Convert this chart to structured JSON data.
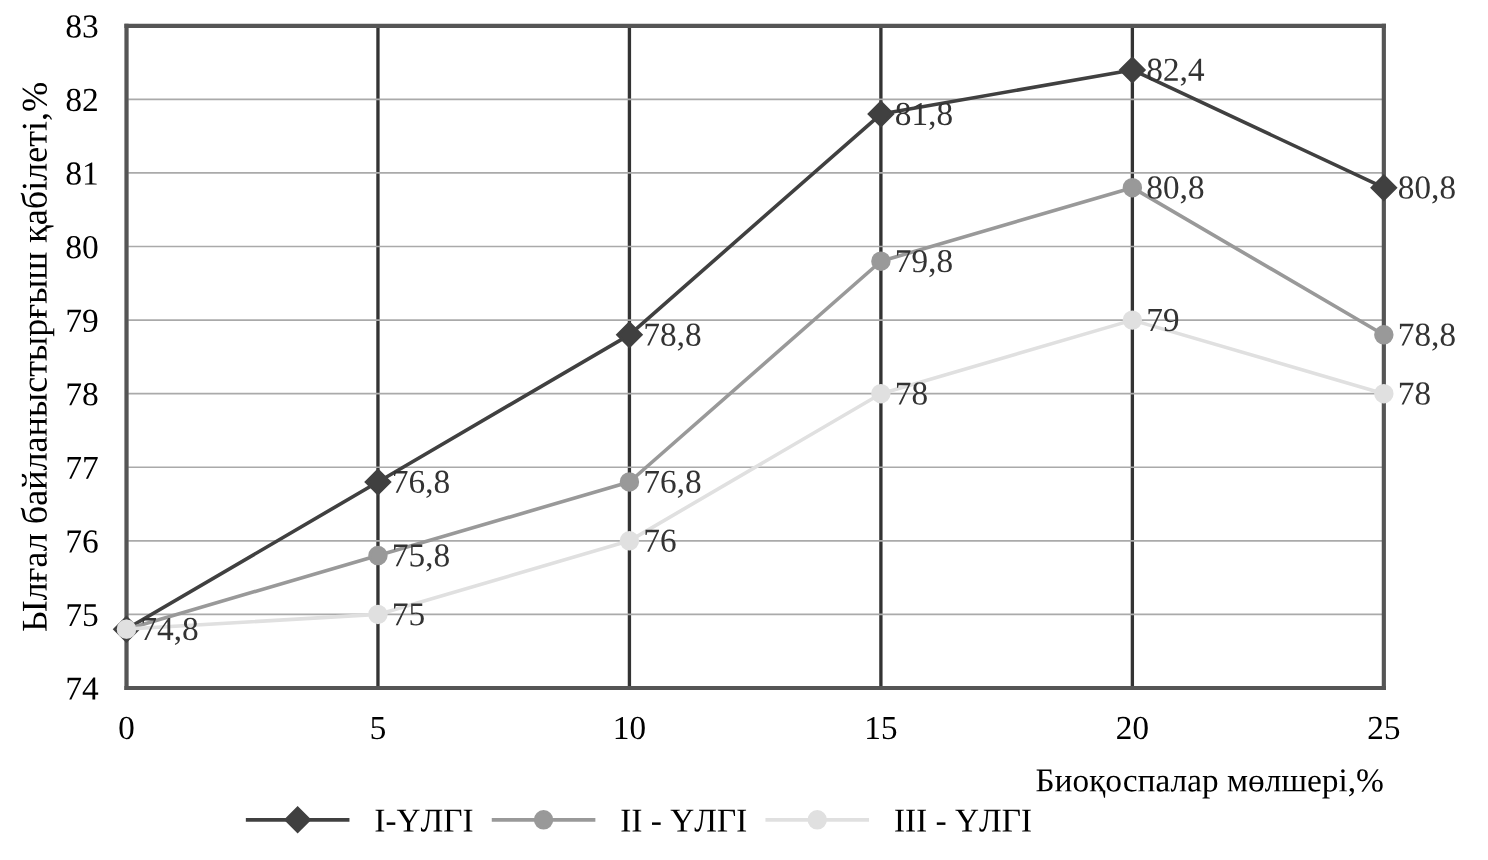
{
  "chart_data": {
    "type": "line",
    "xlabel": "Биоқоспалар мөлшері,%",
    "ylabel": "Ылғал байланыстырғыш қабілеті,%",
    "x": [
      0,
      5,
      10,
      15,
      20,
      25
    ],
    "xlim": [
      0,
      25
    ],
    "xticks": [
      0,
      5,
      10,
      15,
      20,
      25
    ],
    "ylim": [
      74,
      83
    ],
    "yticks": [
      74,
      75,
      76,
      77,
      78,
      79,
      80,
      81,
      82,
      83
    ],
    "grid": true,
    "legend": "bottom",
    "series": [
      {
        "name": "I-ҮЛГІ",
        "color": "#404040",
        "marker": "diamond",
        "values": [
          74.8,
          76.8,
          78.8,
          81.8,
          82.4,
          80.8
        ],
        "value_labels": [
          "74,8",
          "76,8",
          "78,8",
          "81,8",
          "82,4",
          "80,8"
        ]
      },
      {
        "name": "II - ҮЛГІ",
        "color": "#999999",
        "marker": "circle",
        "values": [
          74.8,
          75.8,
          76.8,
          79.8,
          80.8,
          78.8
        ],
        "value_labels": [
          null,
          "75,8",
          "76,8",
          "79,8",
          "80,8",
          "78,8"
        ]
      },
      {
        "name": "III - ҮЛГІ",
        "color": "#e0e0e0",
        "marker": "circle",
        "values": [
          74.8,
          75,
          76,
          78,
          79,
          78
        ],
        "value_labels": [
          null,
          "75",
          "76",
          "78",
          "79",
          "78"
        ]
      }
    ]
  }
}
